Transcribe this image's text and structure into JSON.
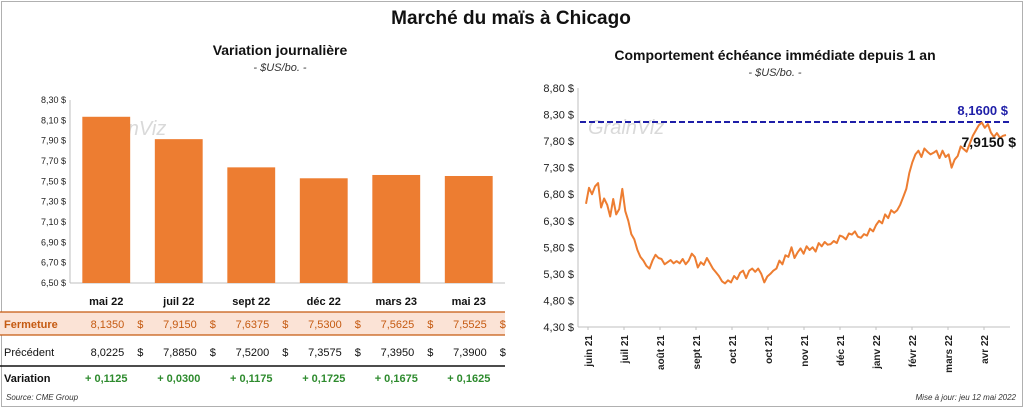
{
  "title": "Marché du maïs à Chicago",
  "source": "Source: CME Group",
  "updated": "Mise à jour: jeu 12 mai 2022",
  "colors": {
    "bar": "#ED7D31",
    "line": "#ED7D31",
    "reference": "#1F1FA8",
    "positive": "#2E8B2E",
    "fermeture_row": "#FBE3D6"
  },
  "chart_data": [
    {
      "type": "bar",
      "title": "Variation journalière",
      "subtitle": "- $US/bo. -",
      "watermark": "GrainViz",
      "categories": [
        "mai 22",
        "juil 22",
        "sept 22",
        "déc 22",
        "mars 23",
        "mai 23"
      ],
      "values": [
        8.135,
        7.915,
        7.6375,
        7.53,
        7.5625,
        7.5525
      ],
      "ylim": [
        6.5,
        8.3
      ],
      "yticks": [
        6.5,
        6.7,
        6.9,
        7.1,
        7.3,
        7.5,
        7.7,
        7.9,
        8.1,
        8.3
      ],
      "ytick_labels": [
        "6,50 $",
        "6,70 $",
        "6,90 $",
        "7,10 $",
        "7,30 $",
        "7,50 $",
        "7,70 $",
        "7,90 $",
        "8,10 $",
        "8,30 $"
      ],
      "grid": false,
      "table": {
        "rows": [
          {
            "label": "Fermeture",
            "values": [
              "8,1350",
              "7,9150",
              "7,6375",
              "7,5300",
              "7,5625",
              "7,5525"
            ],
            "unit": "$"
          },
          {
            "label": "Précédent",
            "values": [
              "8,0225",
              "7,8850",
              "7,5200",
              "7,3575",
              "7,3950",
              "7,3900"
            ],
            "unit": "$"
          },
          {
            "label": "Variation",
            "values": [
              "+ 0,1125",
              "+ 0,0300",
              "+ 0,1175",
              "+ 0,1725",
              "+ 0,1675",
              "+ 0,1625"
            ]
          }
        ]
      }
    },
    {
      "type": "line",
      "title": "Comportement échéance immédiate depuis 1 an",
      "subtitle": "- $US/bo. -",
      "watermark": "GrainViz",
      "ylim": [
        4.3,
        8.8
      ],
      "yticks": [
        4.3,
        4.8,
        5.3,
        5.8,
        6.3,
        6.8,
        7.3,
        7.8,
        8.3,
        8.8
      ],
      "ytick_labels": [
        "4,30 $",
        "4,80 $",
        "5,30 $",
        "5,80 $",
        "6,30 $",
        "6,80 $",
        "7,30 $",
        "7,80 $",
        "8,30 $",
        "8,80 $"
      ],
      "x_labels": [
        "juin 21",
        "juil 21",
        "août 21",
        "sept 21",
        "oct 21",
        "oct 21",
        "nov 21",
        "déc 21",
        "janv 22",
        "févr 22",
        "mars 22",
        "avr 22"
      ],
      "reference_line": {
        "value": 8.16,
        "label": "8,1600 $"
      },
      "last_value_label": "7,9150 $",
      "series": [
        {
          "values": [
            6.62,
            6.92,
            6.8,
            6.95,
            7.01,
            6.55,
            6.72,
            6.6,
            6.38,
            6.71,
            6.42,
            6.52,
            6.9,
            6.48,
            6.3,
            6.05,
            5.95,
            5.75,
            5.62,
            5.55,
            5.45,
            5.4,
            5.55,
            5.66,
            5.6,
            5.58,
            5.48,
            5.52,
            5.56,
            5.5,
            5.54,
            5.5,
            5.58,
            5.48,
            5.55,
            5.68,
            5.62,
            5.42,
            5.52,
            5.47,
            5.6,
            5.5,
            5.4,
            5.33,
            5.26,
            5.16,
            5.12,
            5.18,
            5.14,
            5.26,
            5.2,
            5.32,
            5.36,
            5.22,
            5.36,
            5.4,
            5.34,
            5.4,
            5.3,
            5.14,
            5.25,
            5.3,
            5.36,
            5.4,
            5.55,
            5.48,
            5.65,
            5.62,
            5.8,
            5.6,
            5.7,
            5.78,
            5.68,
            5.82,
            5.75,
            5.8,
            5.72,
            5.88,
            5.82,
            5.9,
            5.85,
            5.86,
            5.92,
            5.88,
            6.02,
            6.0,
            5.95,
            6.06,
            6.04,
            6.1,
            6.0,
            5.98,
            6.05,
            6.02,
            6.15,
            6.1,
            6.22,
            6.3,
            6.25,
            6.42,
            6.35,
            6.5,
            6.45,
            6.5,
            6.6,
            6.75,
            6.9,
            7.2,
            7.4,
            7.55,
            7.62,
            7.5,
            7.66,
            7.6,
            7.55,
            7.58,
            7.62,
            7.48,
            7.62,
            7.5,
            7.55,
            7.3,
            7.45,
            7.52,
            7.7,
            7.65,
            7.6,
            7.75,
            7.9,
            8.0,
            8.1,
            8.15,
            8.05,
            8.12,
            7.96,
            7.88,
            7.95,
            7.86,
            7.9,
            7.915
          ]
        }
      ]
    }
  ]
}
